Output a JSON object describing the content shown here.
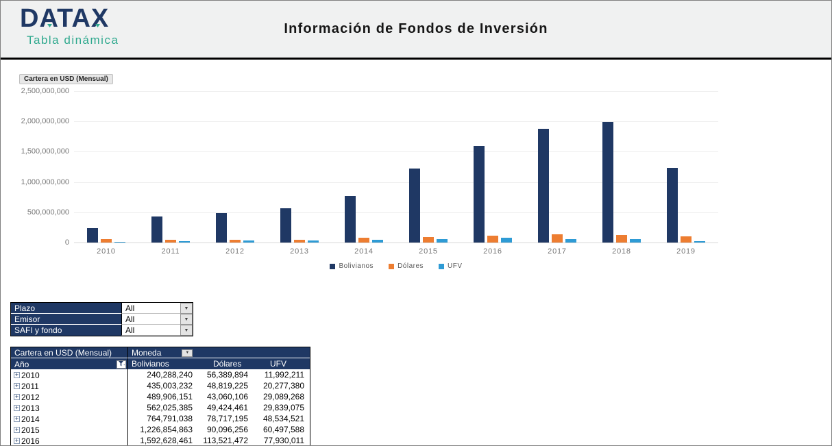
{
  "header": {
    "logo_title": "DATAX",
    "logo_subtitle": "Tabla dinámica",
    "page_title": "Información de Fondos de Inversión"
  },
  "colors": {
    "navy": "#1F3864",
    "orange": "#ED7D31",
    "blue": "#2E9BD5",
    "teal": "#2FA98E",
    "header_bg": "#F0F1F1"
  },
  "chart": {
    "field_button_label": "Cartera en USD (Mensual)",
    "y_ticks": [
      "2,500,000,000",
      "2,000,000,000",
      "1,500,000,000",
      "1,000,000,000",
      "500,000,000",
      "0"
    ]
  },
  "chart_data": {
    "type": "bar",
    "title": "Cartera en USD (Mensual)",
    "categories": [
      "2010",
      "2011",
      "2012",
      "2013",
      "2014",
      "2015",
      "2016",
      "2017",
      "2018",
      "2019"
    ],
    "series": [
      {
        "name": "Bolivianos",
        "color": "#1F3864",
        "values": [
          240288240,
          435003232,
          489906151,
          562025385,
          764791038,
          1226854863,
          1592628461,
          1880000000,
          1990000000,
          1230000000
        ]
      },
      {
        "name": "Dólares",
        "color": "#ED7D31",
        "values": [
          56389894,
          48819225,
          43060106,
          49424461,
          78717195,
          90096256,
          113521472,
          140000000,
          128000000,
          104000000
        ]
      },
      {
        "name": "UFV",
        "color": "#2E9BD5",
        "values": [
          11992211,
          20277380,
          29089268,
          29839075,
          48534521,
          60497588,
          77930011,
          61000000,
          57000000,
          27000000
        ]
      }
    ],
    "xlabel": "",
    "ylabel": "",
    "ylim": [
      0,
      2500000000
    ],
    "grid": true,
    "legend_position": "bottom"
  },
  "filters": [
    {
      "label": "Plazo",
      "value": "All"
    },
    {
      "label": "Emisor",
      "value": "All"
    },
    {
      "label": "SAFI y fondo",
      "value": "All"
    }
  ],
  "pivot": {
    "title": "Cartera en USD (Mensual)",
    "col_field": "Moneda",
    "row_field": "Año",
    "columns": [
      "Bolivianos",
      "Dólares",
      "UFV"
    ],
    "rows": [
      {
        "year": "2010",
        "values": [
          "240,288,240",
          "56,389,894",
          "11,992,211"
        ]
      },
      {
        "year": "2011",
        "values": [
          "435,003,232",
          "48,819,225",
          "20,277,380"
        ]
      },
      {
        "year": "2012",
        "values": [
          "489,906,151",
          "43,060,106",
          "29,089,268"
        ]
      },
      {
        "year": "2013",
        "values": [
          "562,025,385",
          "49,424,461",
          "29,839,075"
        ]
      },
      {
        "year": "2014",
        "values": [
          "764,791,038",
          "78,717,195",
          "48,534,521"
        ]
      },
      {
        "year": "2015",
        "values": [
          "1,226,854,863",
          "90,096,256",
          "60,497,588"
        ]
      },
      {
        "year": "2016",
        "values": [
          "1,592,628,461",
          "113,521,472",
          "77,930,011"
        ]
      }
    ]
  }
}
